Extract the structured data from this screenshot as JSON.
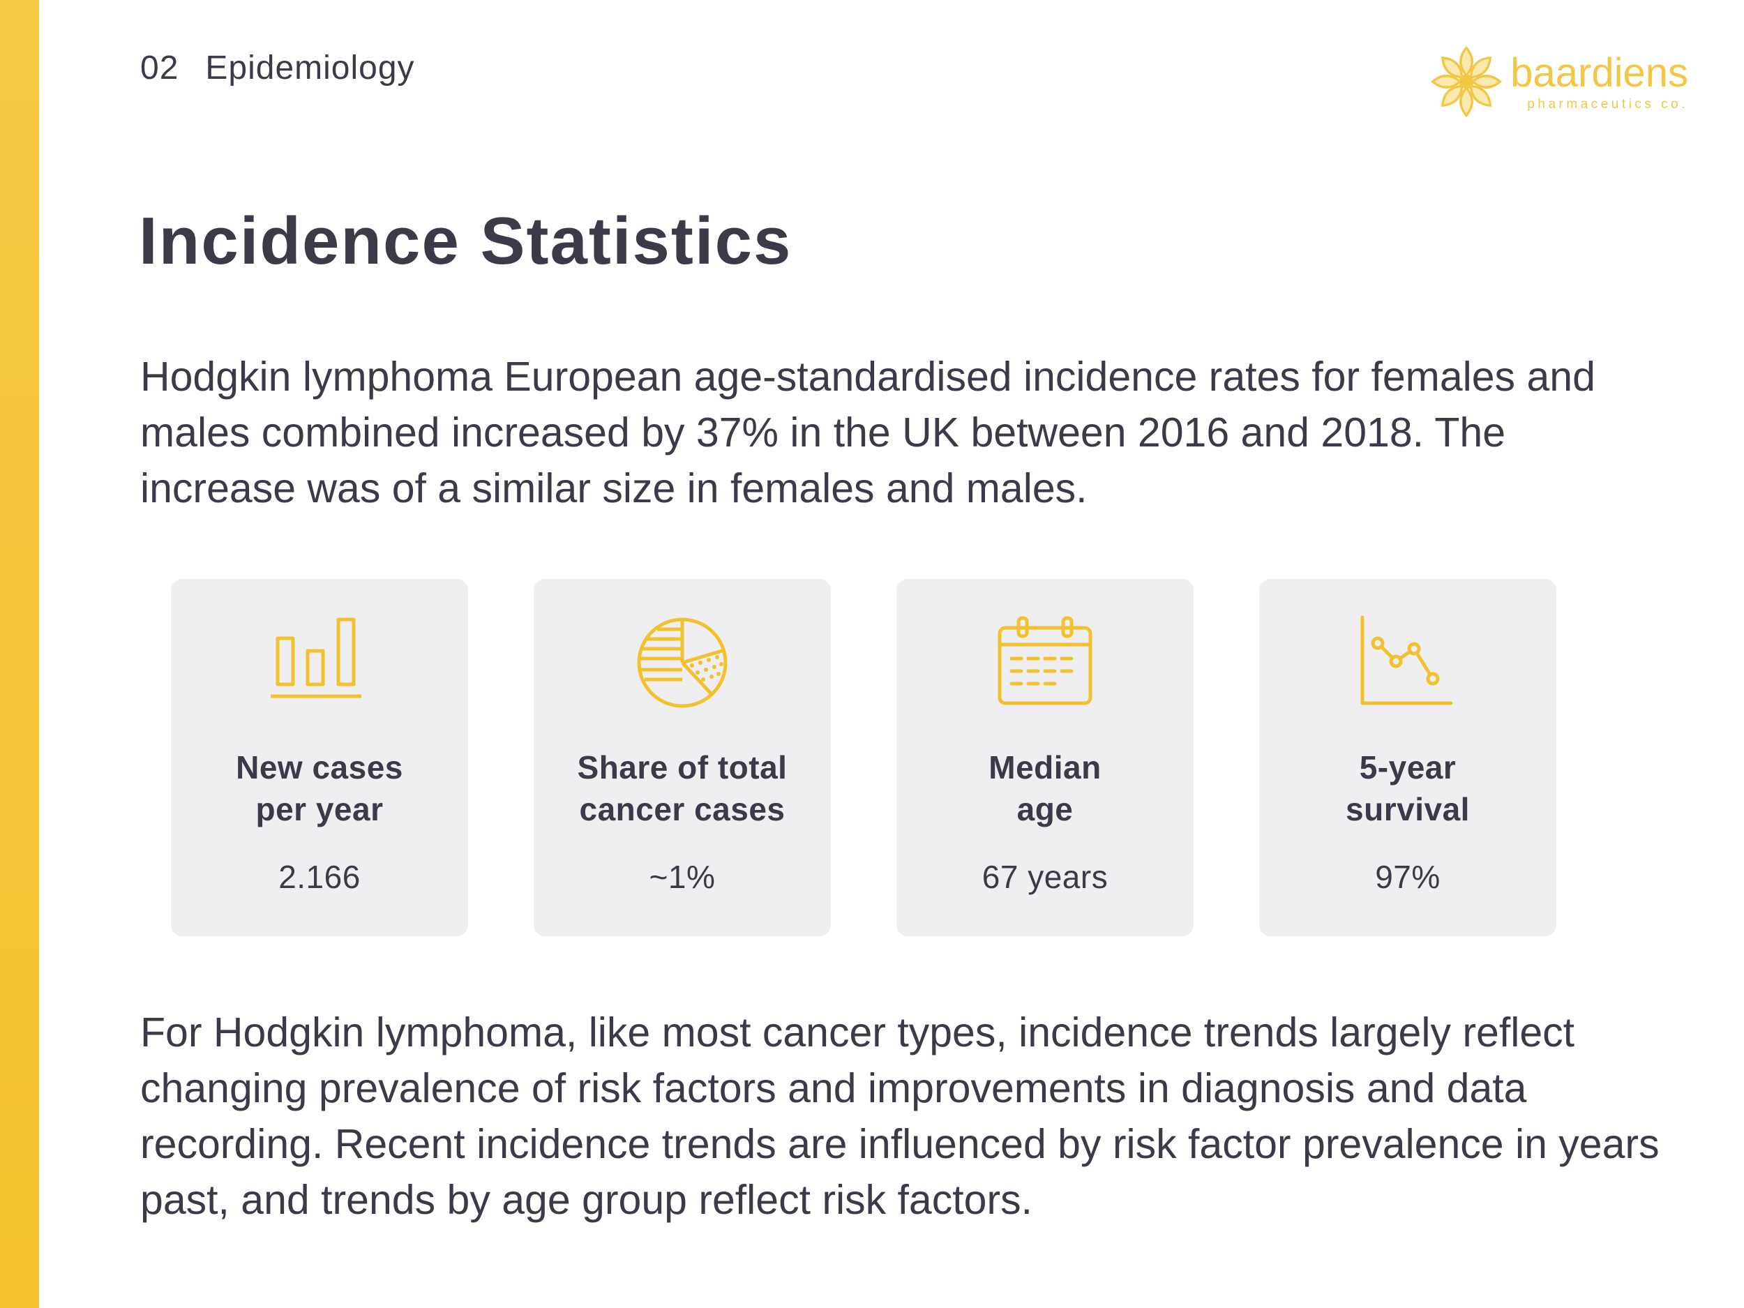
{
  "header": {
    "section_number": "02",
    "section_title": "Epidemiology"
  },
  "logo": {
    "name": "baardiens",
    "subtitle": "pharmaceutics co.",
    "icon": "lotus-flower-icon"
  },
  "title": "Incidence Statistics",
  "intro_text": "Hodgkin lymphoma European age-standardised incidence rates for females and males combined increased by 37% in the UK between 2016 and 2018. The increase was of a similar size in females and males.",
  "stats": [
    {
      "icon": "bar-chart-icon",
      "label_line1": "New cases",
      "label_line2": "per year",
      "value": "2.166"
    },
    {
      "icon": "pie-chart-icon",
      "label_line1": "Share of total",
      "label_line2": "cancer cases",
      "value": "~1%"
    },
    {
      "icon": "calendar-icon",
      "label_line1": "Median",
      "label_line2": "age",
      "value": "67 years"
    },
    {
      "icon": "line-chart-icon",
      "label_line1": "5-year",
      "label_line2": "survival",
      "value": "97%"
    }
  ],
  "outro_text": "For Hodgkin lymphoma, like most cancer types, incidence trends largely reflect changing prevalence of risk factors and improvements in diagnosis and data recording. Recent incidence trends are influenced by risk factor prevalence in years past, and trends by age group reflect risk factors.",
  "colors": {
    "accent": "#f5c12e",
    "text": "#3b3a48",
    "card_background": "#efeff1",
    "icon": "#f2c12e"
  }
}
